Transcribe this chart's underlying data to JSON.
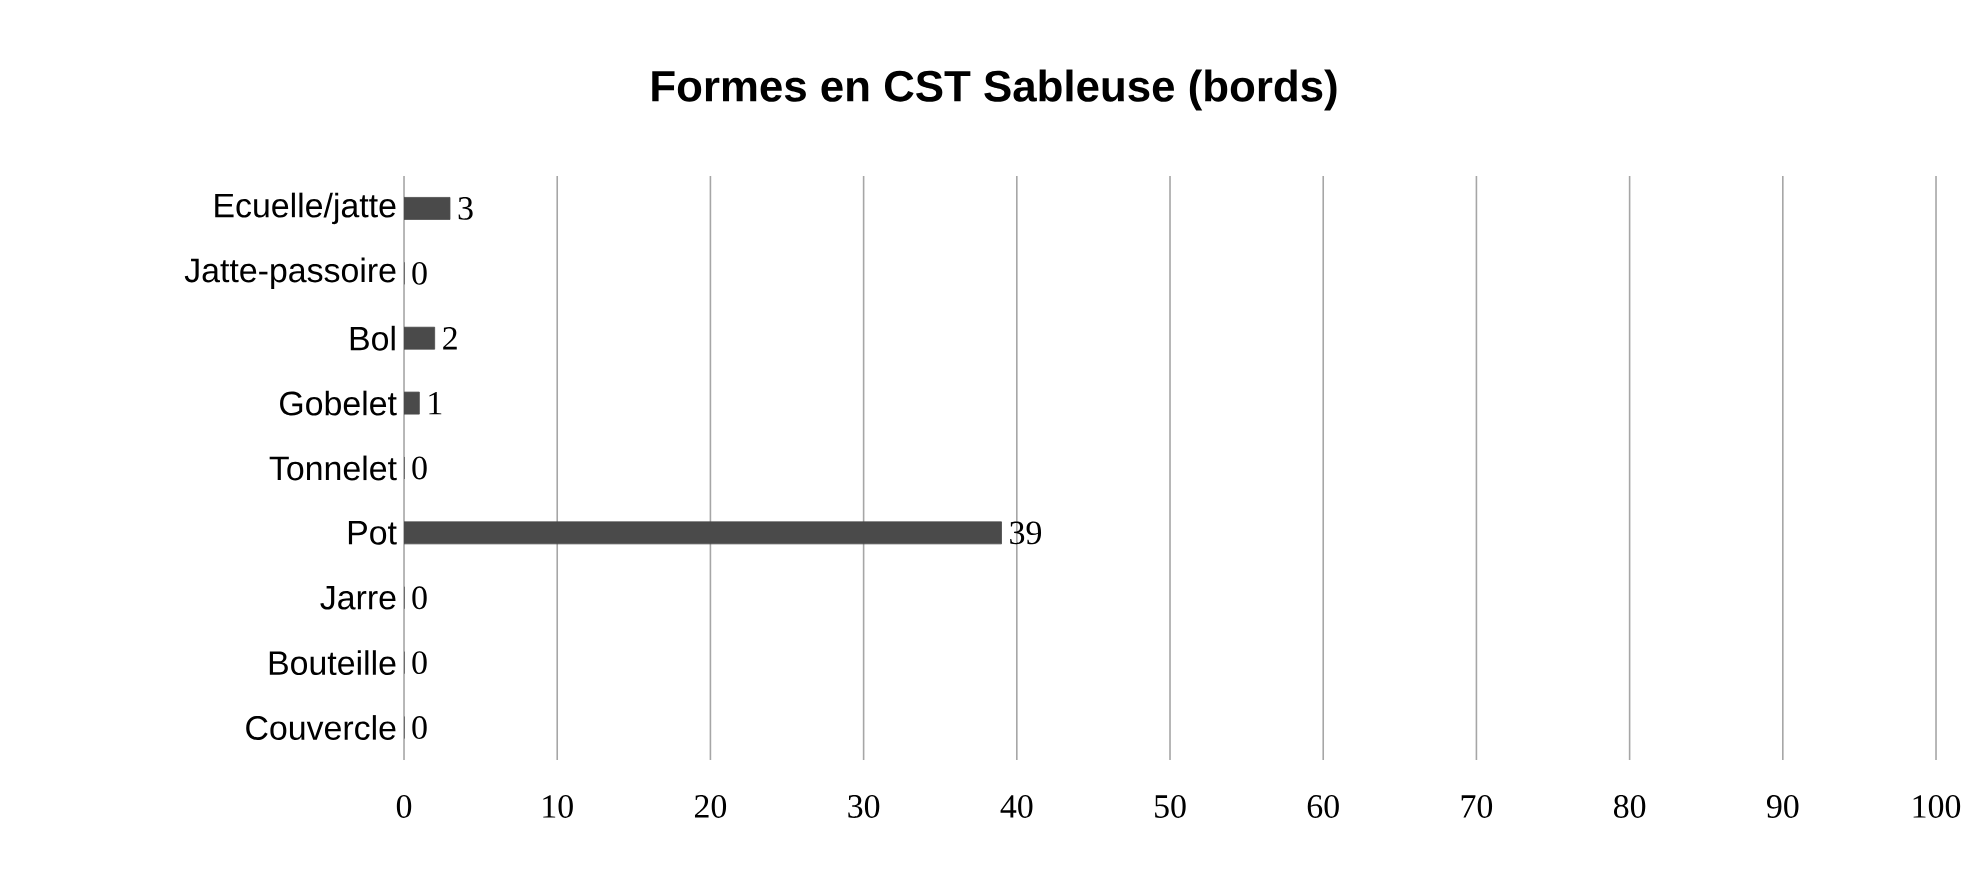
{
  "chart_data": {
    "type": "bar",
    "orientation": "horizontal",
    "title": "Formes en CST Sableuse (bords)",
    "categories": [
      "Ecuelle/jatte",
      "Jatte-passoire",
      "Bol",
      "Gobelet",
      "Tonnelet",
      "Pot",
      "Jarre",
      "Bouteille",
      "Couvercle"
    ],
    "values": [
      3,
      0,
      2,
      1,
      0,
      39,
      0,
      0,
      0
    ],
    "color": "#4a4a4a",
    "xlim": [
      0,
      100
    ],
    "xticks": [
      0,
      10,
      20,
      30,
      40,
      50,
      60,
      70,
      80,
      90,
      100
    ],
    "grid": "x",
    "data_labels": true
  }
}
